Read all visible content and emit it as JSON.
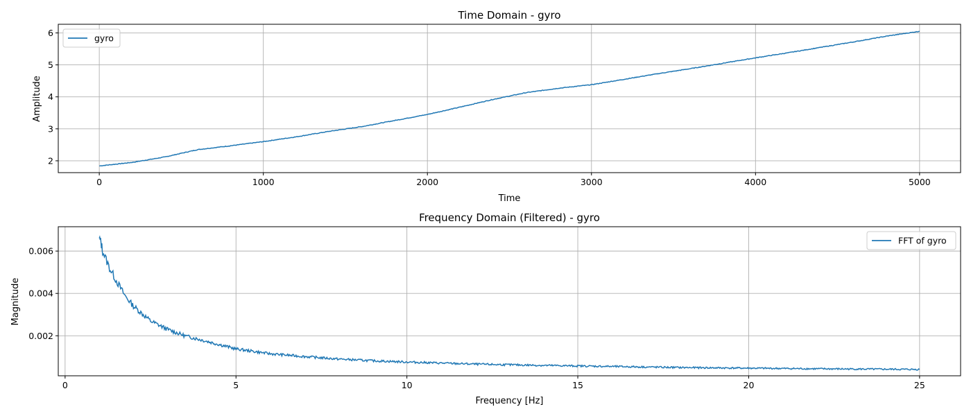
{
  "chart_data": [
    {
      "type": "line",
      "title": "Time Domain - gyro",
      "xlabel": "Time",
      "ylabel": "Amplitude",
      "xlim": [
        -250,
        5250
      ],
      "ylim": [
        1.63,
        6.27
      ],
      "xticks": [
        0,
        1000,
        2000,
        3000,
        4000,
        5000
      ],
      "xtick_labels": [
        "0",
        "1000",
        "2000",
        "3000",
        "4000",
        "5000"
      ],
      "yticks": [
        2,
        3,
        4,
        5,
        6
      ],
      "ytick_labels": [
        "2",
        "3",
        "4",
        "5",
        "6"
      ],
      "grid": true,
      "legend": "upper-left",
      "color": "#1f77b4",
      "series": [
        {
          "name": "gyro",
          "x": [
            0,
            200,
            400,
            600,
            800,
            1000,
            1200,
            1400,
            1600,
            1800,
            2000,
            2200,
            2400,
            2600,
            2800,
            3000,
            3200,
            3400,
            3600,
            3800,
            4000,
            4200,
            4400,
            4600,
            4800,
            5000
          ],
          "y": [
            1.84,
            1.95,
            2.12,
            2.35,
            2.47,
            2.6,
            2.75,
            2.92,
            3.07,
            3.26,
            3.45,
            3.68,
            3.92,
            4.13,
            4.27,
            4.38,
            4.55,
            4.72,
            4.88,
            5.05,
            5.22,
            5.38,
            5.55,
            5.72,
            5.9,
            6.05
          ]
        }
      ]
    },
    {
      "type": "line",
      "title": "Frequency Domain (Filtered) - gyro",
      "xlabel": "Frequency [Hz]",
      "ylabel": "Magnitude",
      "xlim": [
        -0.2,
        26.2
      ],
      "ylim": [
        0.00011,
        0.00715
      ],
      "xticks": [
        0,
        5,
        10,
        15,
        20,
        25
      ],
      "xtick_labels": [
        "0",
        "5",
        "10",
        "15",
        "20",
        "25"
      ],
      "yticks": [
        0.002,
        0.004,
        0.006
      ],
      "ytick_labels": [
        "0.002",
        "0.004",
        "0.006"
      ],
      "grid": true,
      "legend": "upper-right",
      "color": "#1f77b4",
      "series": [
        {
          "name": "FFT of gyro",
          "x": [
            1.0,
            1.05,
            1.1,
            1.2,
            1.3,
            1.5,
            1.75,
            2.0,
            2.5,
            3.0,
            3.5,
            4.0,
            5.0,
            6.0,
            7.0,
            8.0,
            9.0,
            10.0,
            12.0,
            14.0,
            16.0,
            18.0,
            20.0,
            22.0,
            24.0,
            25.0
          ],
          "y": [
            0.0066,
            0.0064,
            0.006,
            0.0056,
            0.0052,
            0.0046,
            0.0039,
            0.0034,
            0.0027,
            0.0023,
            0.002,
            0.0018,
            0.00138,
            0.00115,
            0.00102,
            0.0009,
            0.00082,
            0.00076,
            0.00066,
            0.0006,
            0.00055,
            0.0005,
            0.00047,
            0.00044,
            0.00042,
            0.00041
          ]
        }
      ]
    }
  ]
}
